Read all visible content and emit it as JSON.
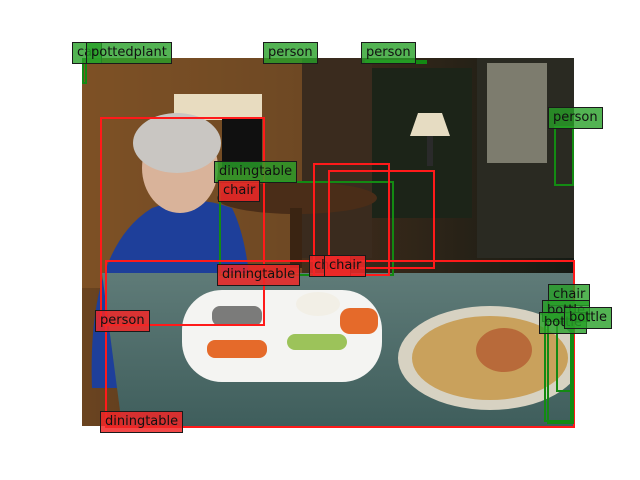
{
  "colors": {
    "red": "#ff1a1a",
    "green": "#138a13"
  },
  "labels": [
    "car",
    "pottedplant",
    "person",
    "person",
    "person",
    "diningtable",
    "chair",
    "chair",
    "chair",
    "diningtable",
    "person",
    "diningtable",
    "chair",
    "bottle",
    "bottle",
    "bottle"
  ]
}
